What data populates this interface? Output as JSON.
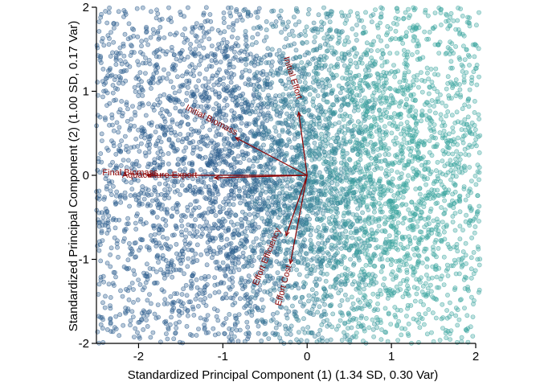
{
  "chart_data": {
    "type": "scatter",
    "title": "",
    "xlabel": "Standardized Principal Component (1) (1.34 SD, 0.30 Var)",
    "ylabel": "Standardized Principal Component (2) (1.00 SD, 0.17 Var)",
    "xlim": [
      -2.5,
      2.0
    ],
    "ylim": [
      -2.0,
      2.0
    ],
    "xticks": [
      -2,
      -1,
      0,
      1,
      2
    ],
    "yticks": [
      -2,
      -1,
      0,
      1,
      2
    ],
    "xtick_labels": [
      "-2",
      "-1",
      "0",
      "1",
      "2"
    ],
    "ytick_labels": [
      "-2",
      "-1",
      "0",
      "1",
      "2"
    ],
    "grid": false,
    "legend": "none",
    "points": {
      "count": 6000,
      "distribution": "dense uniform-like cloud covering the full plot area, density highest near the centre",
      "color_gradient": [
        "#2f5f8f",
        "#3fa6a1"
      ],
      "color_by": "x value (blue on the left, teal on the right)",
      "opacity": 0.35
    },
    "loadings": [
      {
        "name": "Initial Effort",
        "x": -0.1,
        "y": 0.75
      },
      {
        "name": "Initial Biomass",
        "x": -0.85,
        "y": 0.45
      },
      {
        "name": "Final Biomass",
        "x": -1.9,
        "y": 0.0
      },
      {
        "name": "Aquaculture Export",
        "x": -1.1,
        "y": -0.03
      },
      {
        "name": "Effort Efficiency",
        "x": -0.25,
        "y": -0.72
      },
      {
        "name": "Effort Cost",
        "x": -0.2,
        "y": -1.05
      }
    ],
    "loading_color": "#8b0000",
    "loading_labels": [
      {
        "text": "Initial Effort",
        "x": -0.2,
        "y": 1.15,
        "rotation": 72
      },
      {
        "text": "Initial Biomass",
        "x": -1.15,
        "y": 0.63,
        "rotation": 27
      },
      {
        "text": "Final Biomass",
        "x": -2.1,
        "y": 0.0,
        "rotation": 0
      },
      {
        "text": "Aquaculture Export",
        "x": -1.75,
        "y": -0.03,
        "rotation": 0
      },
      {
        "text": "Effort Efficiency",
        "x": -0.45,
        "y": -0.98,
        "rotation": -68
      },
      {
        "text": "Effort Cost",
        "x": -0.25,
        "y": -1.32,
        "rotation": -75
      }
    ]
  }
}
